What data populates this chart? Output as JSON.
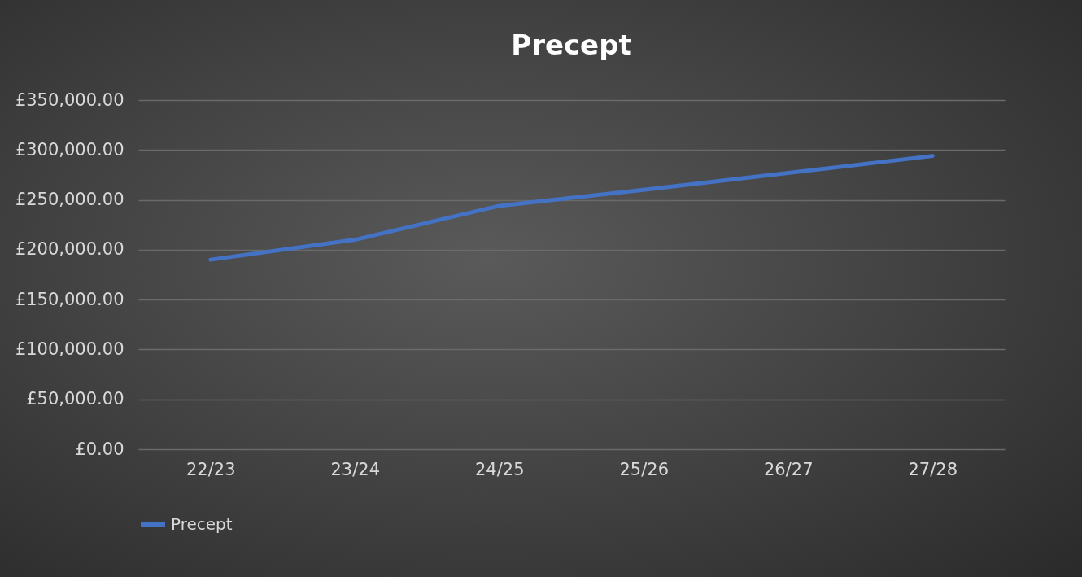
{
  "chart_data": {
    "type": "line",
    "title": "Precept",
    "categories": [
      "22/23",
      "23/24",
      "24/25",
      "25/26",
      "26/27",
      "27/28"
    ],
    "series": [
      {
        "name": "Precept",
        "color": "#4472c4",
        "values": [
          190000,
          210000,
          244000,
          260000,
          277000,
          294000
        ]
      }
    ],
    "ylim": [
      0,
      350000
    ],
    "yticks": [
      {
        "value": 0,
        "label": "£0.00"
      },
      {
        "value": 50000,
        "label": "£50,000.00"
      },
      {
        "value": 100000,
        "label": "£100,000.00"
      },
      {
        "value": 150000,
        "label": "£150,000.00"
      },
      {
        "value": 200000,
        "label": "£200,000.00"
      },
      {
        "value": 250000,
        "label": "£250,000.00"
      },
      {
        "value": 300000,
        "label": "£300,000.00"
      },
      {
        "value": 350000,
        "label": "£350,000.00"
      }
    ],
    "grid": "y",
    "legend": "bottom",
    "marker": "none",
    "line_style": "solid"
  }
}
